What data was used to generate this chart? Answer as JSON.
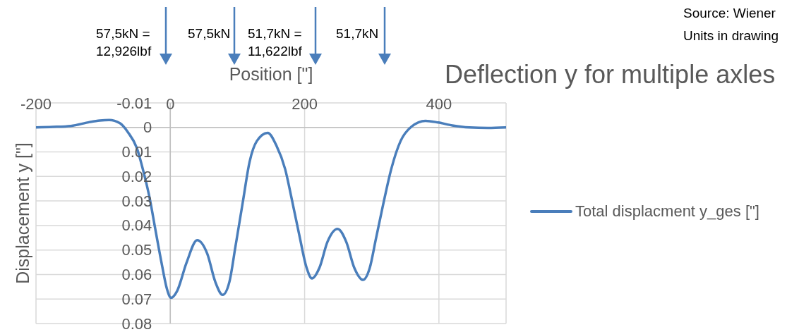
{
  "chart_data": {
    "type": "line",
    "title": "Deflection y for multiple axles",
    "xlabel": "Position [\"]",
    "ylabel": "Displacement y [\"]",
    "annotations": [
      "57,5kN = 12,926lbf",
      "57,5kN",
      "51,7kN = 11,622lbf",
      "51,7kN",
      "Source: Wiener",
      "Units in drawing"
    ],
    "x": [
      -200,
      -175,
      -148,
      -120,
      -105,
      -91,
      -75,
      -63,
      -50,
      -40,
      -31,
      -22,
      -13,
      -5,
      1,
      10,
      24,
      40,
      55,
      67,
      78,
      88,
      97,
      108,
      118,
      129,
      145,
      158,
      171,
      181,
      192,
      203,
      211,
      222,
      234,
      249,
      262,
      274,
      287,
      297,
      306,
      317,
      329,
      343,
      359,
      380,
      399,
      420,
      445,
      473,
      500
    ],
    "series": [
      {
        "name": "Total displacment y_ges [\"]",
        "color": "#4a7ebb",
        "values": [
          0,
          -0.0002,
          -0.0006,
          -0.0022,
          -0.0028,
          -0.003,
          -0.0017,
          0.002,
          0.0083,
          0.018,
          0.0285,
          0.042,
          0.0553,
          0.0659,
          0.0695,
          0.0668,
          0.0553,
          0.046,
          0.0515,
          0.063,
          0.0683,
          0.063,
          0.0486,
          0.0304,
          0.0141,
          0.0055,
          0.0022,
          0.0074,
          0.017,
          0.0294,
          0.0438,
          0.0573,
          0.0616,
          0.0573,
          0.0467,
          0.0414,
          0.0467,
          0.0573,
          0.0622,
          0.0573,
          0.0457,
          0.0314,
          0.017,
          0.0055,
          -0.0003,
          -0.0027,
          -0.002,
          -0.0008,
          0,
          0.0002,
          0
        ]
      }
    ],
    "xlim": [
      -200,
      500
    ],
    "xticks": [
      -200,
      0,
      200,
      400
    ],
    "ylim": [
      0.08,
      -0.01
    ],
    "yticks": [
      -0.01,
      0,
      0.01,
      0.02,
      0.03,
      0.04,
      0.05,
      0.06,
      0.07,
      0.08
    ],
    "grid": true,
    "legend": "right",
    "marker": "none",
    "line_style": "solid"
  }
}
